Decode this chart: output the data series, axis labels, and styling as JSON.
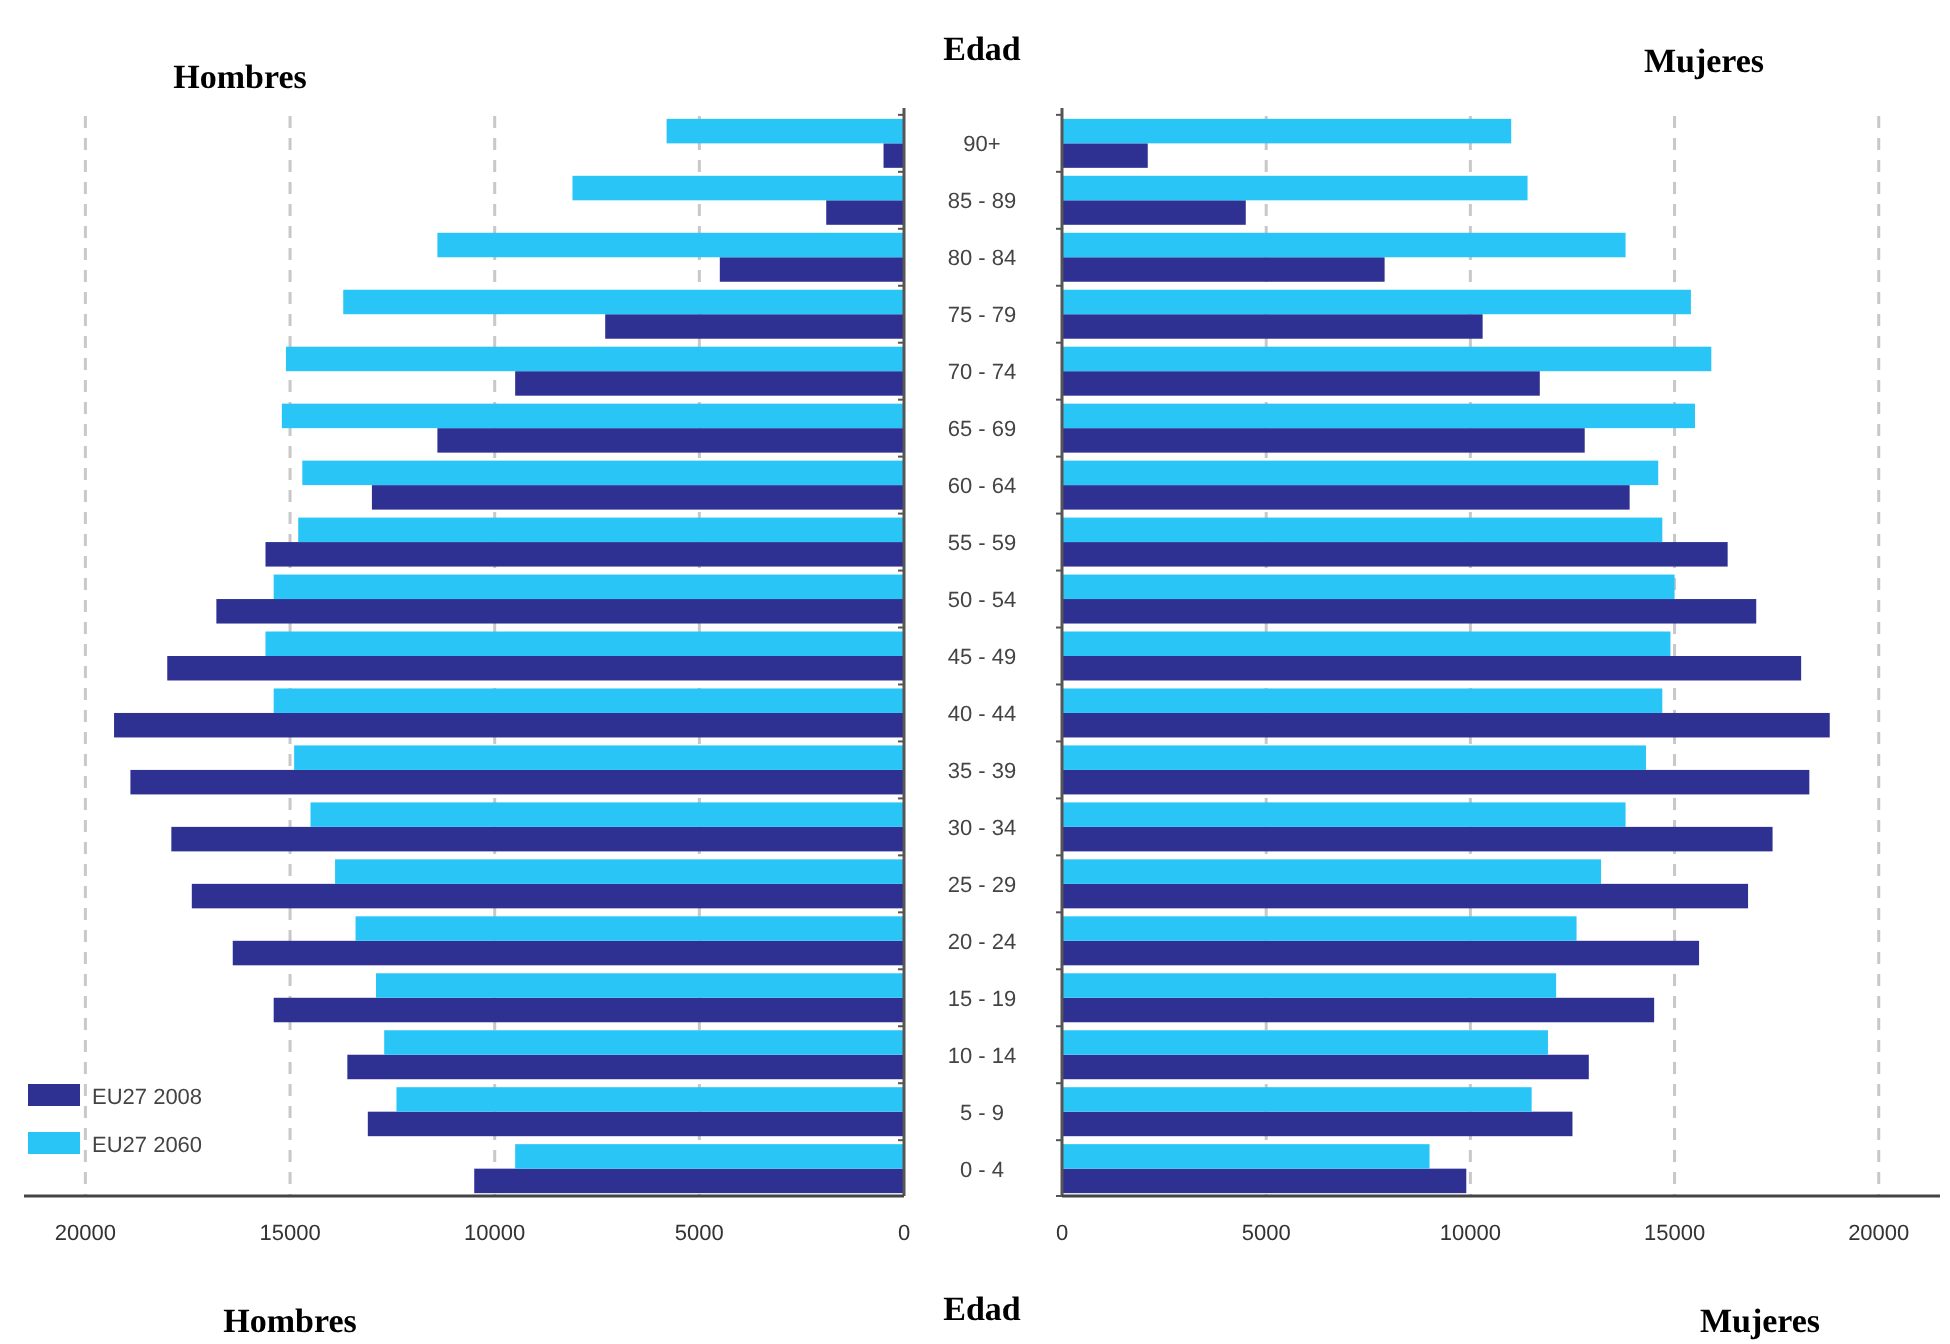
{
  "chart_data": [
    {
      "type": "bar",
      "orientation": "horizontal",
      "title": "Hombres",
      "xlabel": "Hombres",
      "ylabel": "Edad",
      "categories": [
        "90+",
        "85 - 89",
        "80 - 84",
        "75 - 79",
        "70 - 74",
        "65 - 69",
        "60 - 64",
        "55 - 59",
        "50 - 54",
        "45 - 49",
        "40 - 44",
        "35 - 39",
        "30 - 34",
        "25 - 29",
        "20 - 24",
        "15 - 19",
        "10 - 14",
        "5 - 9",
        "0 - 4"
      ],
      "series": [
        {
          "name": "EU27 2008",
          "color": "#2e3192",
          "values": [
            500,
            1900,
            4500,
            7300,
            9500,
            11400,
            13000,
            15600,
            16800,
            18000,
            19300,
            18900,
            17900,
            17400,
            16400,
            15400,
            13600,
            13100,
            10500
          ]
        },
        {
          "name": "EU27 2060",
          "color": "#29c5f6",
          "values": [
            5800,
            8100,
            11400,
            13700,
            15100,
            15200,
            14700,
            14800,
            15400,
            15600,
            15400,
            14900,
            14500,
            13900,
            13400,
            12900,
            12700,
            12400,
            9500
          ]
        }
      ],
      "xlim": [
        21500,
        0
      ],
      "xticks": [
        20000,
        15000,
        10000,
        5000,
        0
      ],
      "grid": "x",
      "legend": "bottom left"
    },
    {
      "type": "bar",
      "orientation": "horizontal",
      "title": "Mujeres",
      "xlabel": "Mujeres",
      "ylabel": "Edad",
      "categories": [
        null,
        null,
        null,
        null,
        null,
        null,
        null,
        null,
        null,
        null,
        null,
        null,
        null,
        null,
        null,
        null,
        null,
        null,
        null
      ],
      "series": [
        {
          "color": "#2e3192",
          "values": [
            2100,
            4500,
            7900,
            10300,
            11700,
            12800,
            13900,
            16300,
            17000,
            18100,
            18800,
            18300,
            17400,
            16800,
            15600,
            14500,
            12900,
            12500,
            9900
          ]
        },
        {
          "color": "#29c5f6",
          "values": [
            11000,
            11400,
            13800,
            15400,
            15900,
            15500,
            14600,
            14700,
            15000,
            14900,
            14700,
            14300,
            13800,
            13200,
            12600,
            12100,
            11900,
            11500,
            9000
          ]
        }
      ],
      "xlim": [
        0,
        21500
      ],
      "xticks": [
        0,
        5000,
        10000,
        15000,
        20000
      ],
      "grid": "x",
      "legend": false,
      "tick_labels": "x"
    }
  ]
}
